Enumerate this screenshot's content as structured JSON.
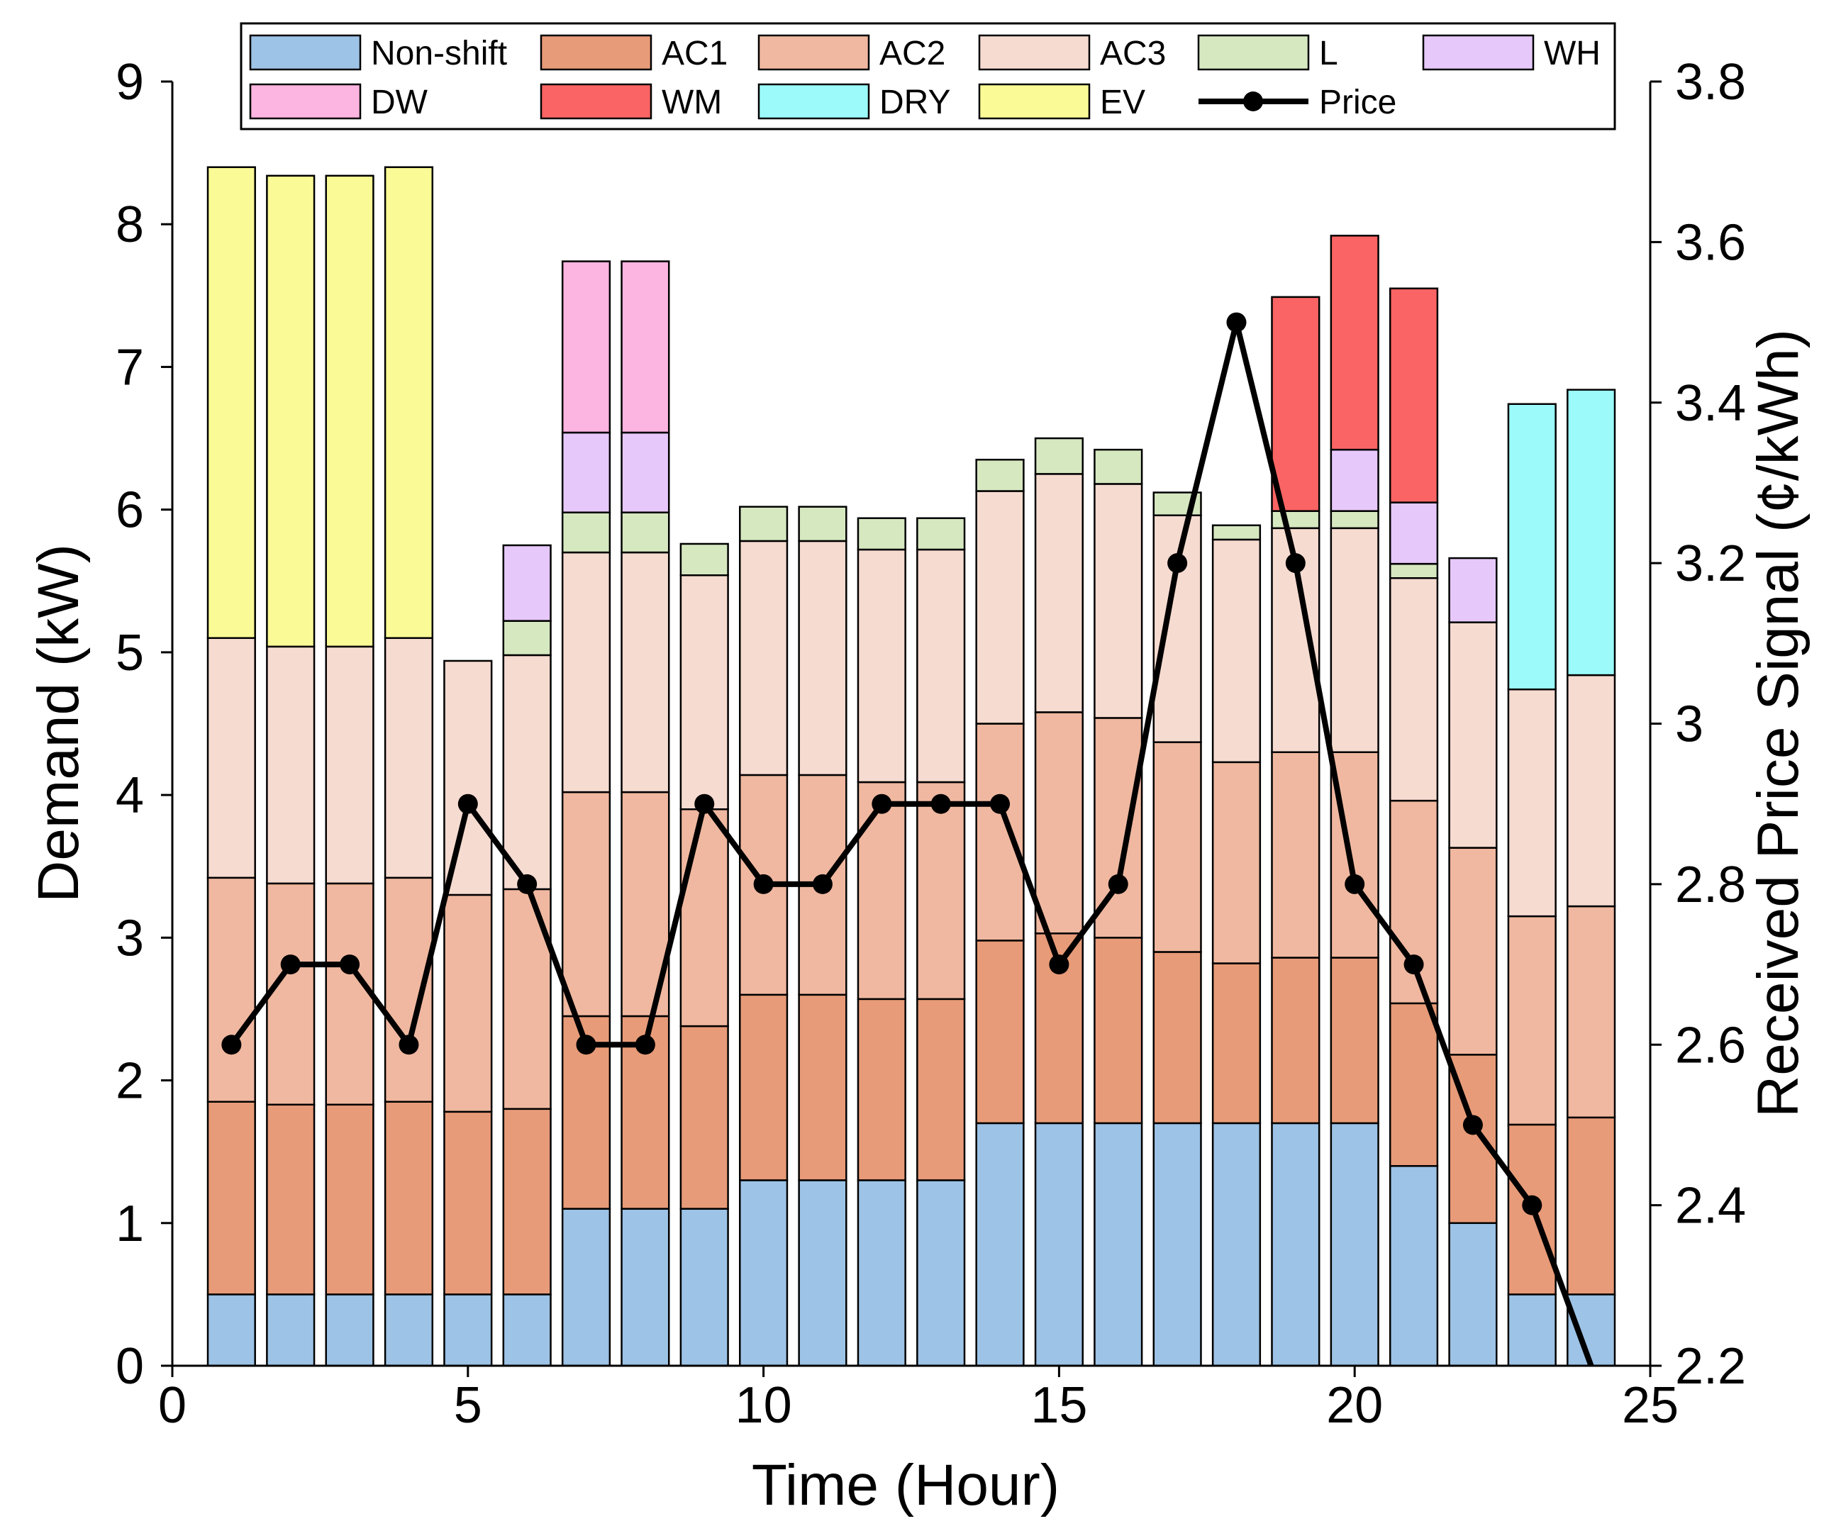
{
  "chart_data": {
    "type": "bar",
    "stacked": true,
    "title": "",
    "xlabel": "Time (Hour)",
    "ylabel": "Demand (kW)",
    "y2label": "Received Price Signal (¢/kWh)",
    "xlim": [
      0,
      25
    ],
    "ylim": [
      0,
      9
    ],
    "y2lim": [
      2.2,
      3.8
    ],
    "grid": false,
    "legend_position": "top",
    "x": [
      1,
      2,
      3,
      4,
      5,
      6,
      7,
      8,
      9,
      10,
      11,
      12,
      13,
      14,
      15,
      16,
      17,
      18,
      19,
      20,
      21,
      22,
      23,
      24
    ],
    "xticks": [
      0,
      5,
      10,
      15,
      20,
      25
    ],
    "xtick_labels": [
      "0",
      "5",
      "10",
      "15",
      "20",
      "25"
    ],
    "yticks": [
      0,
      1,
      2,
      3,
      4,
      5,
      6,
      7,
      8,
      9
    ],
    "ytick_labels": [
      "0",
      "1",
      "2",
      "3",
      "4",
      "5",
      "6",
      "7",
      "8",
      "9"
    ],
    "y2ticks": [
      2.2,
      2.4,
      2.6,
      2.8,
      3.0,
      3.2,
      3.4,
      3.6,
      3.8
    ],
    "y2tick_labels": [
      "2.2",
      "2.4",
      "2.6",
      "2.8",
      "3",
      "3.2",
      "3.4",
      "3.6",
      "3.8"
    ],
    "series": [
      {
        "name": "Non-shift",
        "color": "#9dc3e6",
        "values": [
          0.5,
          0.5,
          0.5,
          0.5,
          0.5,
          0.5,
          1.1,
          1.1,
          1.1,
          1.3,
          1.3,
          1.3,
          1.3,
          1.7,
          1.7,
          1.7,
          1.7,
          1.7,
          1.7,
          1.7,
          1.4,
          1.0,
          0.5,
          0.5
        ]
      },
      {
        "name": "AC1",
        "color": "#e89b78",
        "values": [
          1.35,
          1.33,
          1.33,
          1.35,
          1.28,
          1.3,
          1.35,
          1.35,
          1.28,
          1.3,
          1.3,
          1.27,
          1.27,
          1.28,
          1.33,
          1.3,
          1.2,
          1.12,
          1.16,
          1.16,
          1.14,
          1.18,
          1.19,
          1.24
        ]
      },
      {
        "name": "AC2",
        "color": "#f0b8a0",
        "values": [
          1.57,
          1.55,
          1.55,
          1.57,
          1.52,
          1.54,
          1.57,
          1.57,
          1.52,
          1.54,
          1.54,
          1.52,
          1.52,
          1.52,
          1.55,
          1.54,
          1.47,
          1.41,
          1.44,
          1.44,
          1.42,
          1.45,
          1.46,
          1.48
        ]
      },
      {
        "name": "AC3",
        "color": "#f6dbd0",
        "values": [
          1.68,
          1.66,
          1.66,
          1.68,
          1.64,
          1.64,
          1.68,
          1.68,
          1.64,
          1.64,
          1.64,
          1.63,
          1.63,
          1.63,
          1.67,
          1.64,
          1.59,
          1.56,
          1.57,
          1.57,
          1.56,
          1.58,
          1.59,
          1.62
        ]
      },
      {
        "name": "L",
        "color": "#d6e8c0",
        "values": [
          0,
          0,
          0,
          0,
          0,
          0.24,
          0.28,
          0.28,
          0.22,
          0.24,
          0.24,
          0.22,
          0.22,
          0.22,
          0.25,
          0.24,
          0.16,
          0.1,
          0.12,
          0.12,
          0.1,
          0,
          0,
          0
        ]
      },
      {
        "name": "WH",
        "color": "#e6c8fa",
        "values": [
          0,
          0,
          0,
          0,
          0,
          0.53,
          0.56,
          0.56,
          0,
          0,
          0,
          0,
          0,
          0,
          0,
          0,
          0,
          0,
          0,
          0.43,
          0.43,
          0.45,
          0,
          0
        ]
      },
      {
        "name": "DW",
        "color": "#fcb4e0",
        "values": [
          0,
          0,
          0,
          0,
          0,
          0,
          1.2,
          1.2,
          0,
          0,
          0,
          0,
          0,
          0,
          0,
          0,
          0,
          0,
          0,
          0,
          0,
          0,
          0,
          0
        ]
      },
      {
        "name": "WM",
        "color": "#fa6464",
        "values": [
          0,
          0,
          0,
          0,
          0,
          0,
          0,
          0,
          0,
          0,
          0,
          0,
          0,
          0,
          0,
          0,
          0,
          0,
          1.5,
          1.5,
          1.5,
          0,
          0,
          0
        ]
      },
      {
        "name": "DRY",
        "color": "#9cfafa",
        "values": [
          0,
          0,
          0,
          0,
          0,
          0,
          0,
          0,
          0,
          0,
          0,
          0,
          0,
          0,
          0,
          0,
          0,
          0,
          0,
          0,
          0,
          0,
          2.0,
          2.0
        ]
      },
      {
        "name": "EV",
        "color": "#fafa96",
        "values": [
          3.3,
          3.3,
          3.3,
          3.3,
          0,
          0,
          0,
          0,
          0,
          0,
          0,
          0,
          0,
          0,
          0,
          0,
          0,
          0,
          0,
          0,
          0,
          0,
          0,
          0
        ]
      }
    ],
    "line_series": {
      "name": "Price",
      "axis": "right",
      "color": "#000000",
      "x": [
        1,
        2,
        3,
        4,
        5,
        6,
        7,
        8,
        9,
        10,
        11,
        12,
        13,
        14,
        15,
        16,
        17,
        18,
        19,
        20,
        21,
        22,
        23,
        24
      ],
      "values": [
        2.6,
        2.7,
        2.7,
        2.6,
        2.9,
        2.8,
        2.6,
        2.6,
        2.9,
        2.8,
        2.8,
        2.9,
        2.9,
        2.9,
        2.7,
        2.8,
        3.2,
        3.5,
        3.2,
        2.8,
        2.7,
        2.5,
        2.4,
        2.2
      ],
      "markers": [
        true,
        true,
        true,
        true,
        true,
        true,
        true,
        true,
        true,
        true,
        true,
        true,
        true,
        true,
        true,
        true,
        true,
        true,
        true,
        true,
        true,
        true,
        true,
        false
      ]
    },
    "legend": [
      {
        "label": "Non-shift",
        "kind": "patch",
        "color": "#9dc3e6"
      },
      {
        "label": "AC1",
        "kind": "patch",
        "color": "#e89b78"
      },
      {
        "label": "AC2",
        "kind": "patch",
        "color": "#f0b8a0"
      },
      {
        "label": "AC3",
        "kind": "patch",
        "color": "#f6dbd0"
      },
      {
        "label": "L",
        "kind": "patch",
        "color": "#d6e8c0"
      },
      {
        "label": "WH",
        "kind": "patch",
        "color": "#e6c8fa"
      },
      {
        "label": "DW",
        "kind": "patch",
        "color": "#fcb4e0"
      },
      {
        "label": "WM",
        "kind": "patch",
        "color": "#fa6464"
      },
      {
        "label": "DRY",
        "kind": "patch",
        "color": "#9cfafa"
      },
      {
        "label": "EV",
        "kind": "patch",
        "color": "#fafa96"
      },
      {
        "label": "Price",
        "kind": "line",
        "color": "#000000"
      }
    ]
  }
}
